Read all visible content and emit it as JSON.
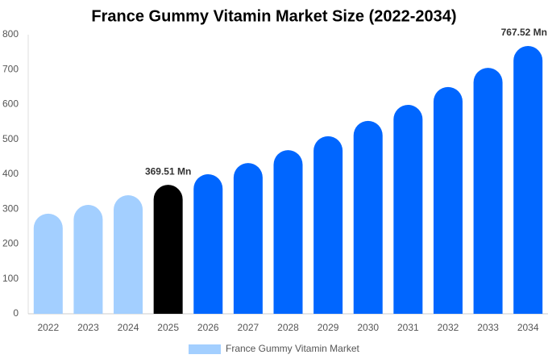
{
  "chart_data": {
    "type": "bar",
    "title": "France Gummy Vitamin Market Size (2022-2034)",
    "categories": [
      "2022",
      "2023",
      "2024",
      "2025",
      "2026",
      "2027",
      "2028",
      "2029",
      "2030",
      "2031",
      "2032",
      "2033",
      "2034"
    ],
    "series": [
      {
        "name": "France Gummy Vitamin Market",
        "color": "#a3cfff",
        "colors": [
          "#a3cfff",
          "#a3cfff",
          "#a3cfff",
          "#000000",
          "#0066ff",
          "#0066ff",
          "#0066ff",
          "#0066ff",
          "#0066ff",
          "#0066ff",
          "#0066ff",
          "#0066ff",
          "#0066ff"
        ],
        "values": [
          287,
          312,
          340,
          369.51,
          400,
          432,
          469,
          509,
          553,
          599,
          650,
          705,
          767.52
        ],
        "value_labels": [
          null,
          null,
          null,
          "369.51 Mn",
          null,
          null,
          null,
          null,
          null,
          null,
          null,
          null,
          "767.52 Mn"
        ]
      }
    ],
    "ylim": [
      0,
      800
    ],
    "yticks": [
      0,
      100,
      200,
      300,
      400,
      500,
      600,
      700,
      800
    ],
    "grid": false,
    "legend": "bottom"
  }
}
